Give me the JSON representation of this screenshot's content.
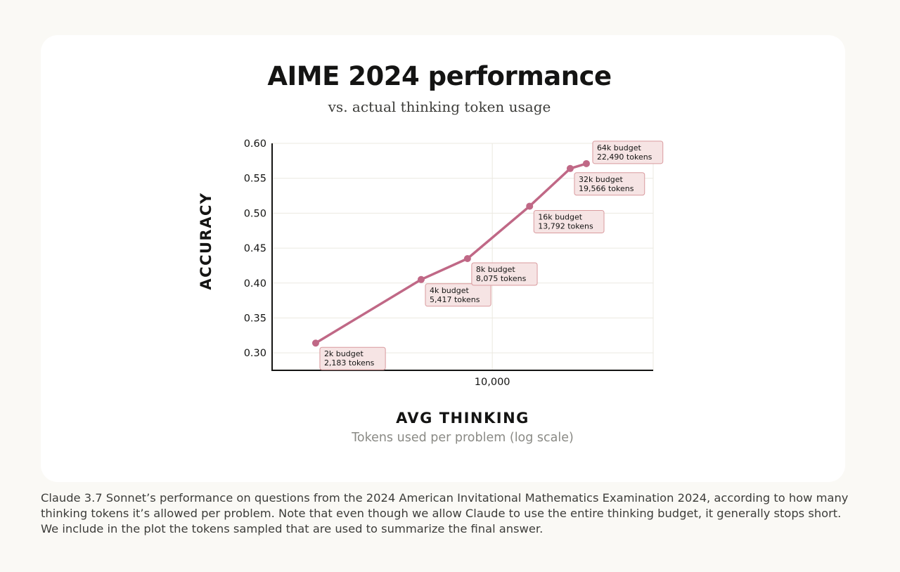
{
  "chart_data": {
    "type": "line",
    "title": "AIME 2024 performance",
    "subtitle": "vs. actual thinking token usage",
    "ylabel": "ACCURACY",
    "xlabel": "AVG THINKING",
    "xlabel_sub": "Tokens used per problem (log scale)",
    "x_scale": "log",
    "xlim": [
      1500,
      40000
    ],
    "ylim": [
      0.275,
      0.6
    ],
    "y_ticks": [
      "0.30",
      "0.35",
      "0.40",
      "0.45",
      "0.50",
      "0.55",
      "0.60"
    ],
    "y_tick_values": [
      0.3,
      0.35,
      0.4,
      0.45,
      0.5,
      0.55,
      0.6
    ],
    "x_ticks": [
      "10,000"
    ],
    "x_tick_values": [
      10000
    ],
    "grid": true,
    "line_color": "#c06886",
    "label_bg": "#f6e4e4",
    "label_border": "#d99a9e",
    "points": [
      {
        "x": 2183,
        "y": 0.314,
        "label1": "2k budget",
        "label2": "2,183 tokens"
      },
      {
        "x": 5417,
        "y": 0.405,
        "label1": "4k budget",
        "label2": "5,417 tokens"
      },
      {
        "x": 8075,
        "y": 0.435,
        "label1": "8k budget",
        "label2": "8,075 tokens"
      },
      {
        "x": 13792,
        "y": 0.51,
        "label1": "16k budget",
        "label2": "13,792 tokens"
      },
      {
        "x": 19566,
        "y": 0.564,
        "label1": "32k budget",
        "label2": "19,566 tokens"
      },
      {
        "x": 22490,
        "y": 0.571,
        "label1": "64k budget",
        "label2": "22,490 tokens"
      }
    ]
  },
  "caption": "Claude 3.7 Sonnet’s performance on questions from the 2024 American Invitational Mathematics Examination 2024, according to how many thinking tokens it’s allowed per problem. Note that even though we allow Claude to use the entire thinking budget, it generally stops short. We include in the plot the tokens sampled that are used to summarize the final answer."
}
